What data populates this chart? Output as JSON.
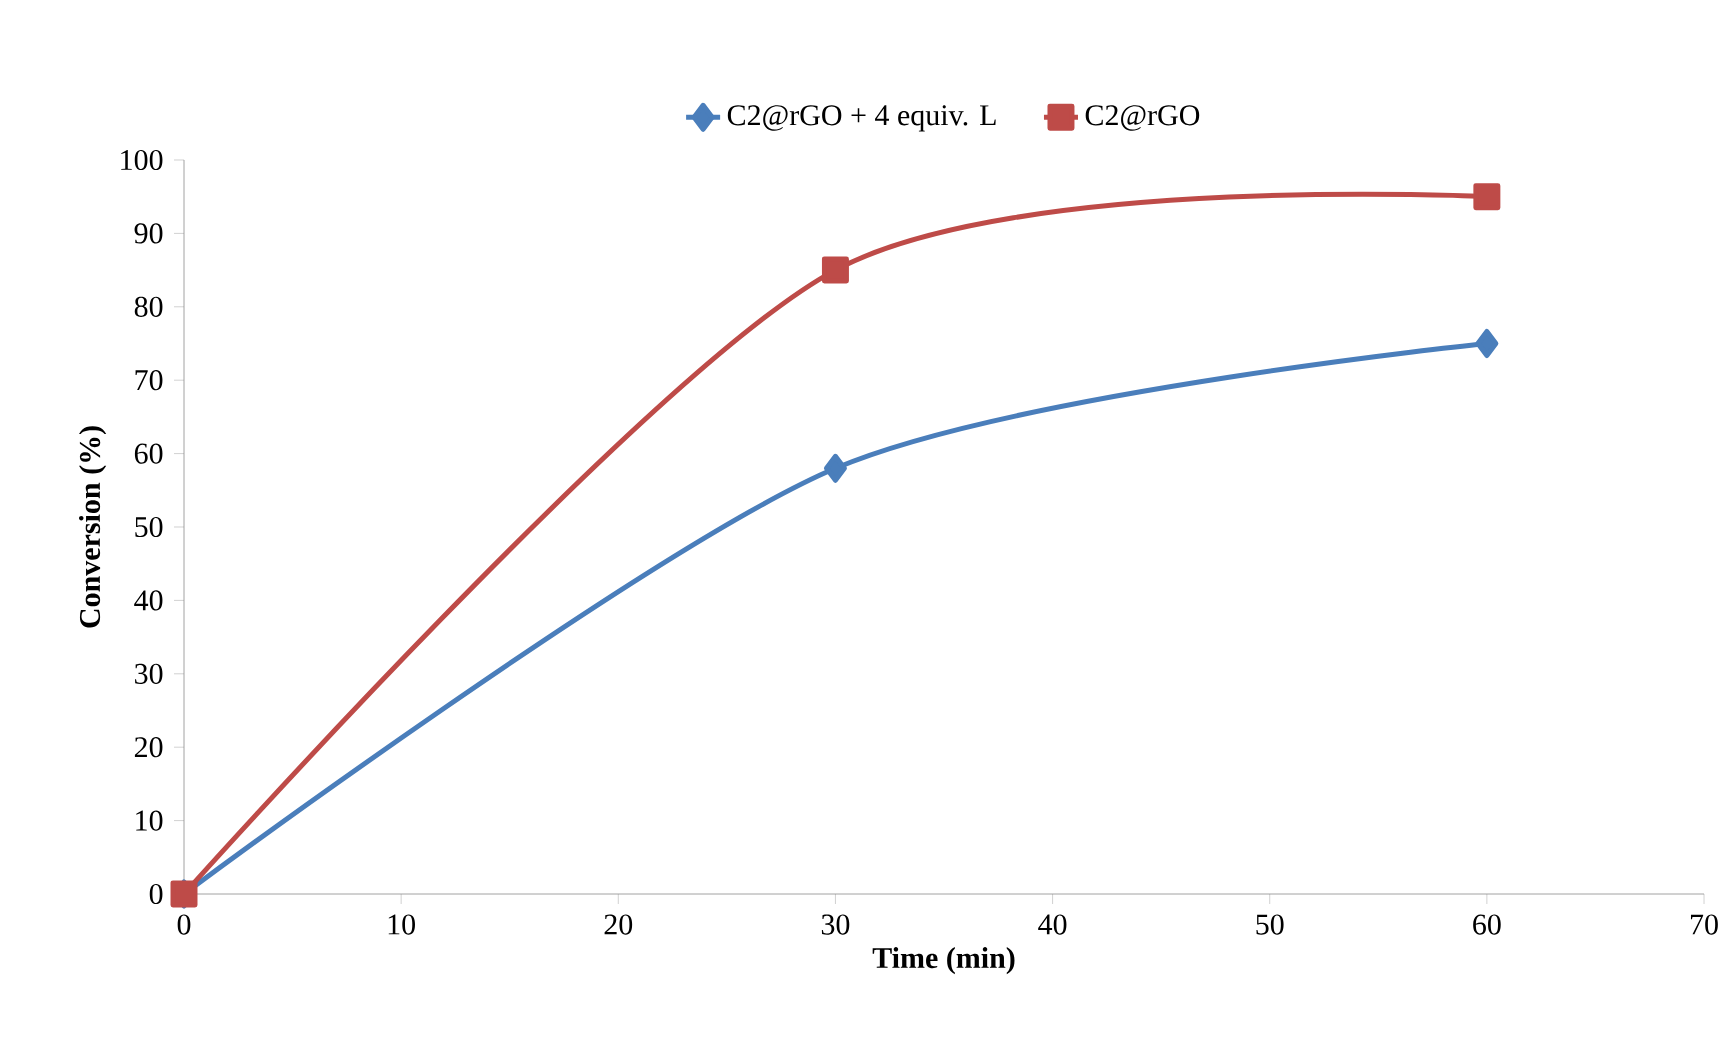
{
  "chart_data": {
    "type": "line",
    "xlabel": "Time (min)",
    "ylabel": "Conversion (%)",
    "xlim": [
      0,
      70
    ],
    "xticks": [
      0,
      10,
      20,
      30,
      40,
      50,
      60,
      70
    ],
    "ylim": [
      0,
      100
    ],
    "yticks": [
      0,
      10,
      20,
      30,
      40,
      50,
      60,
      70,
      80,
      90,
      100
    ],
    "legend": "top",
    "grid": false,
    "series": [
      {
        "name": "C2@rGO + 4 equiv. L",
        "color": "#4a7ebb",
        "marker": "diamond",
        "x": [
          0,
          30,
          60
        ],
        "values": [
          0,
          58,
          75
        ]
      },
      {
        "name": "C2@rGO",
        "color": "#be4b48",
        "marker": "square",
        "x": [
          0,
          30,
          60
        ],
        "values": [
          0,
          85,
          95
        ]
      }
    ]
  }
}
